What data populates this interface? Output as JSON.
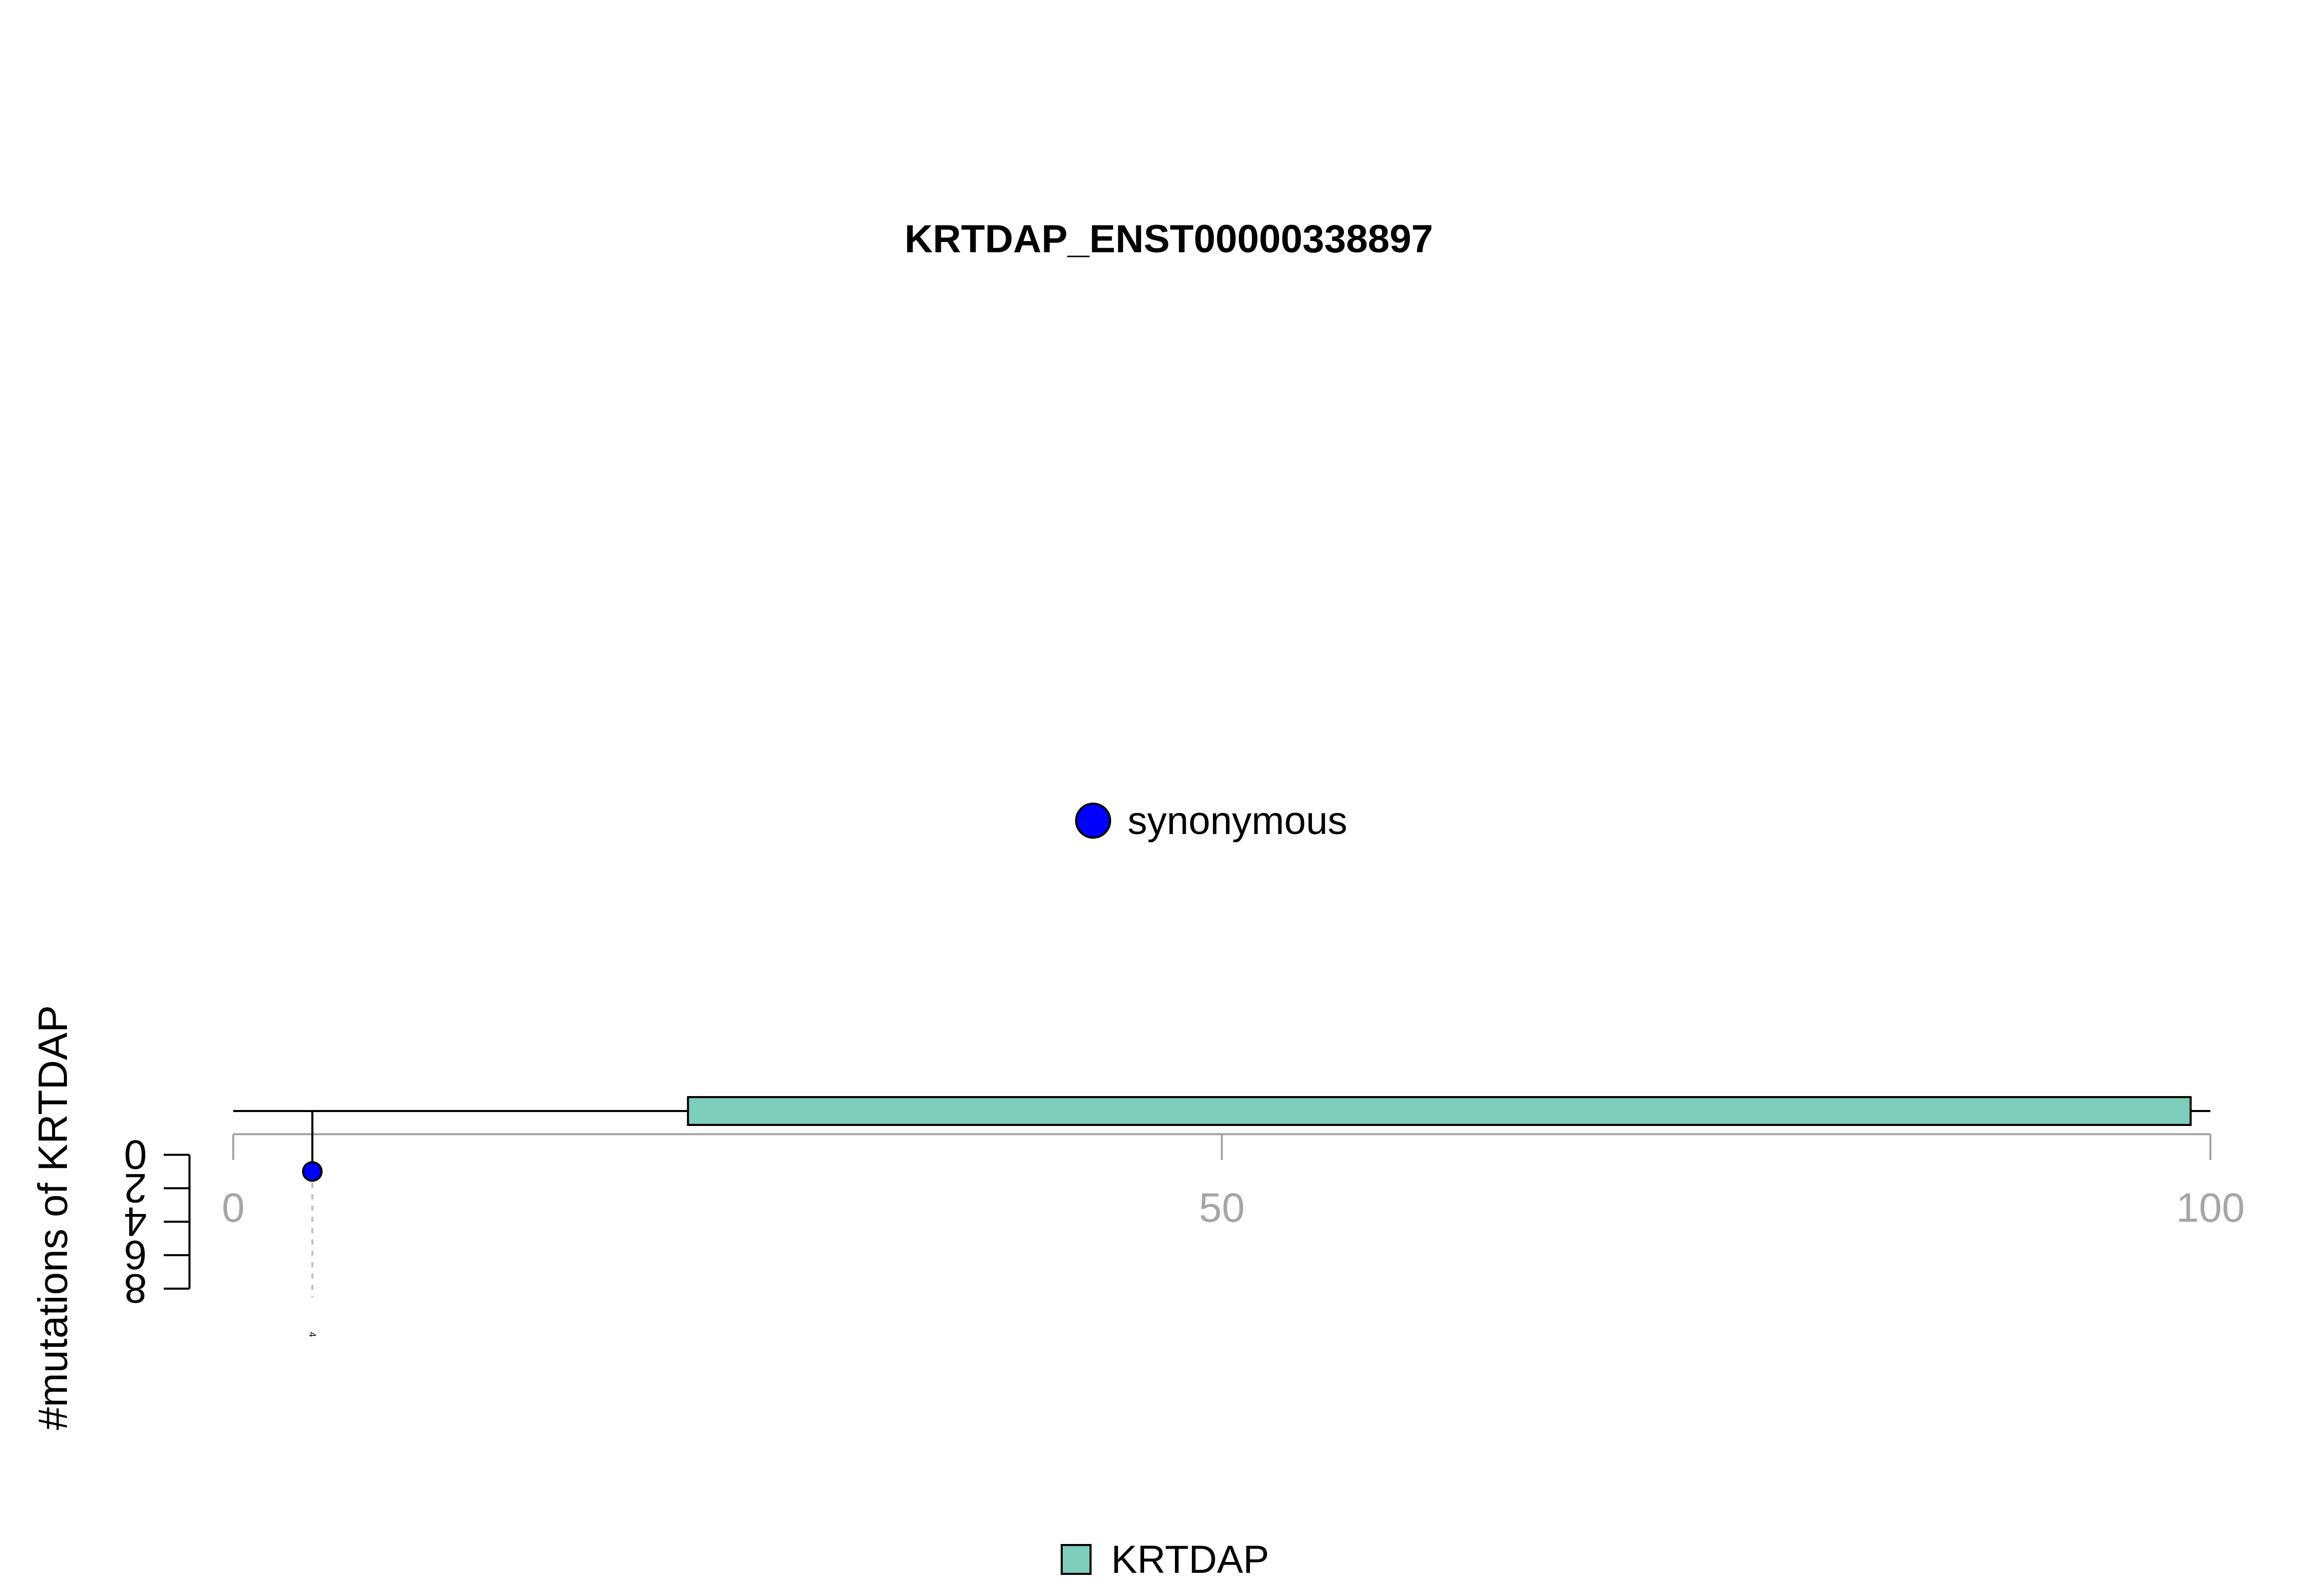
{
  "chart_data": {
    "type": "lollipop",
    "title": "KRTDAP_ENST00000338897",
    "ylabel": "#mutations of KRTDAP",
    "xlim": [
      0,
      100
    ],
    "x_ticks": [
      "0",
      "50",
      "100"
    ],
    "ylim": [
      0,
      8
    ],
    "y_ticks": [
      "0",
      "2",
      "4",
      "6",
      "8"
    ],
    "protein_length": 100,
    "domains": [
      {
        "name": "KRTDAP",
        "start": 23,
        "end": 99,
        "color": "#7fcdbb"
      }
    ],
    "mutations": [
      {
        "position": 4,
        "count": 1,
        "label": "4",
        "type": "synonymous",
        "color": "#0000ff"
      }
    ],
    "legend_top": [
      {
        "label": "synonymous",
        "color": "#0000ff"
      }
    ],
    "legend_bottom": [
      {
        "label": "KRTDAP",
        "color": "#7fcdbb"
      }
    ]
  }
}
